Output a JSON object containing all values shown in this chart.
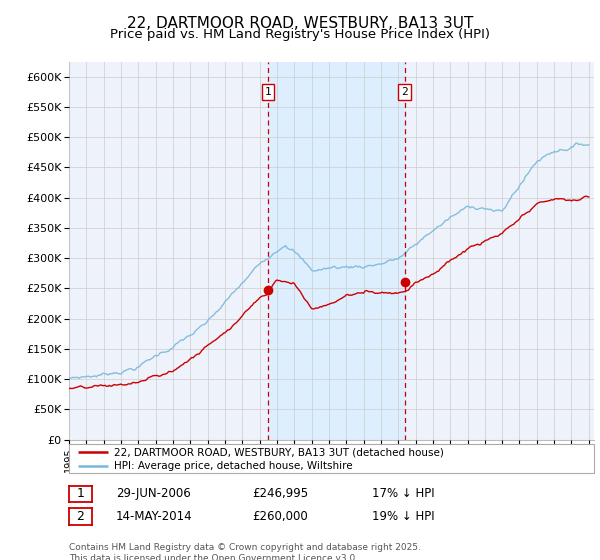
{
  "title": "22, DARTMOOR ROAD, WESTBURY, BA13 3UT",
  "subtitle": "Price paid vs. HM Land Registry's House Price Index (HPI)",
  "ylim": [
    0,
    620000
  ],
  "yticks": [
    0,
    50000,
    100000,
    150000,
    200000,
    250000,
    300000,
    350000,
    400000,
    450000,
    500000,
    550000,
    600000
  ],
  "hpi_color": "#7ab8d9",
  "price_color": "#cc0000",
  "marker_color": "#cc0000",
  "vline_color": "#cc0000",
  "shade_color": "#ddeeff",
  "background_color": "#eef3fb",
  "grid_color": "#cccccc",
  "title_fontsize": 11,
  "subtitle_fontsize": 9.5,
  "transaction1": {
    "date": "29-JUN-2006",
    "price": 246995,
    "label": "1",
    "year": 2006.49,
    "hpi_pct": 17
  },
  "transaction2": {
    "date": "14-MAY-2014",
    "price": 260000,
    "label": "2",
    "year": 2014.37,
    "hpi_pct": 19
  },
  "legend1": "22, DARTMOOR ROAD, WESTBURY, BA13 3UT (detached house)",
  "legend2": "HPI: Average price, detached house, Wiltshire",
  "footer": "Contains HM Land Registry data © Crown copyright and database right 2025.\nThis data is licensed under the Open Government Licence v3.0.",
  "xstart": 1995,
  "xend": 2025
}
